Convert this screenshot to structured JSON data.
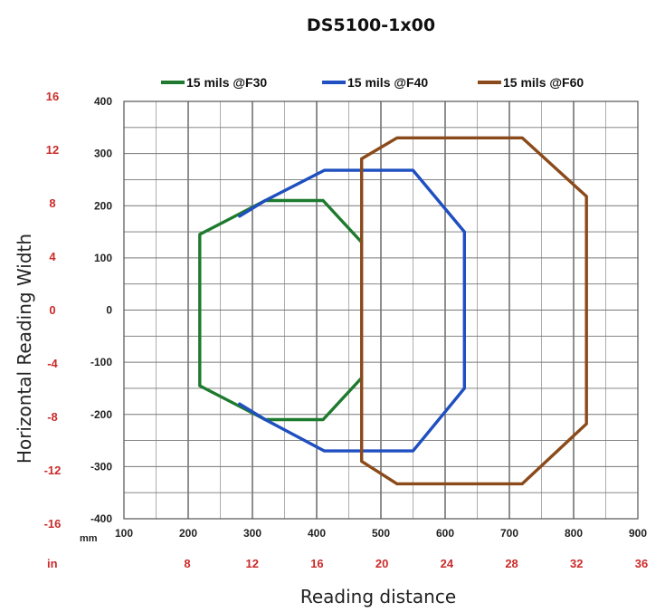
{
  "chart_data": {
    "type": "line",
    "title": "DS5100-1x00",
    "xlabel": "Reading distance",
    "ylabel": "Horizontal Reading Width",
    "xlim": [
      100,
      900
    ],
    "ylim": [
      -400,
      400
    ],
    "grid": true,
    "legend_position": "top",
    "x_unit_mm": "mm",
    "x_unit_in": "in",
    "x_ticks_mm": [
      "100",
      "200",
      "300",
      "400",
      "500",
      "600",
      "700",
      "800",
      "900"
    ],
    "x_ticks_in": [
      "8",
      "12",
      "16",
      "20",
      "24",
      "28",
      "32",
      "36"
    ],
    "y_ticks_mm": [
      "400",
      "300",
      "200",
      "100",
      "0",
      "-100",
      "-200",
      "-300",
      "-400"
    ],
    "y_ticks_in": [
      "16",
      "12",
      "8",
      "4",
      "0",
      "-4",
      "-8",
      "-12",
      "-16"
    ],
    "series": [
      {
        "name": "15 mils @F30",
        "color": "#1e7a2e",
        "x": [
          470,
          410,
          320,
          218,
          218,
          320,
          410,
          470
        ],
        "y": [
          130,
          210,
          210,
          145,
          -145,
          -210,
          -210,
          -130
        ]
      },
      {
        "name": "15 mils @F40",
        "color": "#1f4fc0",
        "x": [
          280,
          280,
          320,
          412,
          550,
          630,
          630,
          550,
          412,
          320,
          280,
          280
        ],
        "y": [
          180,
          180,
          210,
          268,
          268,
          150,
          -150,
          -270,
          -270,
          -210,
          -180,
          -180
        ]
      },
      {
        "name": "15 mils @F60",
        "color": "#8b4a1a",
        "x": [
          470,
          525,
          720,
          820,
          820,
          720,
          525,
          470,
          470
        ],
        "y": [
          290,
          330,
          330,
          218,
          -218,
          -333,
          -333,
          -290,
          290
        ]
      }
    ]
  }
}
